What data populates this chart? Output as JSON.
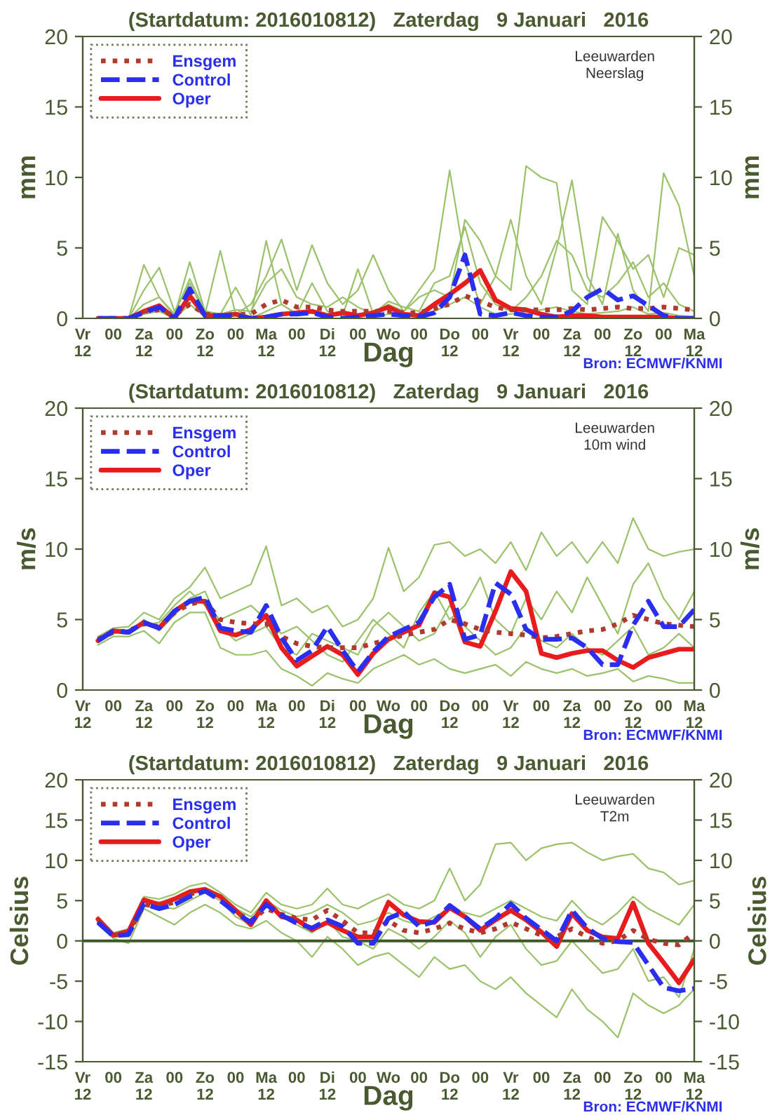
{
  "chart_data": [
    {
      "type": "line",
      "title": "(Startdatum: 2016010812)   Zaterdag   9 Januari   2016",
      "xlabel": "Dag",
      "ylabel": "mm",
      "y2label": "mm",
      "annotations": [
        "Leeuwarden\nNeerslag",
        "Bron: ECMWF/KNMI"
      ],
      "categories": [
        "Vr\n12",
        null,
        "00",
        null,
        "Za\n12",
        null,
        "00",
        null,
        "Zo\n12",
        null,
        "00",
        null,
        "Ma\n12",
        null,
        "00",
        null,
        "Di\n12",
        null,
        "00",
        null,
        "Wo",
        null,
        "00",
        null,
        "Do\n12",
        null,
        "00",
        null,
        "Vr\n12",
        null,
        "00",
        null,
        "Za\n12",
        null,
        "00",
        null,
        "Zo\n12",
        null,
        "00",
        null,
        "Ma\n12"
      ],
      "ylim": [
        0,
        20
      ],
      "yticks": [
        0,
        5,
        10,
        15,
        20
      ],
      "y2lim": [
        0,
        20
      ],
      "y2ticks": [
        0,
        5,
        10,
        15,
        20
      ],
      "legend": "top left",
      "series": [
        {
          "color": "#9bc26b",
          "values": [
            null,
            0,
            0,
            0,
            3.8,
            1.5,
            0.2,
            4.0,
            0.5,
            0.3,
            2.2,
            0.2,
            5.5,
            1.0,
            0.3,
            2.5,
            0.5,
            0.2,
            3.5,
            0.3,
            1.0,
            0.5,
            2.0,
            3.5,
            10.5,
            4.0,
            1.0,
            3.0,
            7.0,
            3.0,
            1.0,
            5.0,
            9.8,
            3.0,
            1.0,
            6.0,
            2.0,
            0.5,
            10.3,
            8.0,
            3.0
          ]
        },
        {
          "color": "#9bc26b",
          "values": [
            null,
            0,
            0,
            0,
            2.0,
            3.6,
            0.5,
            2.5,
            0.3,
            4.8,
            0.3,
            1.0,
            3.0,
            5.6,
            2.0,
            5.2,
            2.5,
            1.0,
            2.0,
            4.5,
            2.0,
            0.5,
            1.5,
            2.0,
            1.5,
            7.0,
            5.5,
            3.0,
            2.0,
            10.8,
            10.0,
            9.6,
            2.0,
            1.0,
            7.2,
            5.5,
            3.5,
            4.5,
            1.5,
            5.0,
            4.5
          ]
        },
        {
          "color": "#9bc26b",
          "values": [
            null,
            0,
            0,
            0,
            1.0,
            1.5,
            0.3,
            2.8,
            0.5,
            0.3,
            0.6,
            0.5,
            2.5,
            3.5,
            1.5,
            1.0,
            0.8,
            1.5,
            0.8,
            0.3,
            1.2,
            0.8,
            0.5,
            2.5,
            3.0,
            6.5,
            2.5,
            1.0,
            0.5,
            1.5,
            3.0,
            5.5,
            4.5,
            2.0,
            1.5,
            2.5,
            4.0,
            1.5,
            2.5,
            1.0,
            0.5
          ]
        },
        {
          "color": "#9bc26b",
          "values": [
            null,
            0,
            0,
            0,
            0.3,
            0.5,
            0,
            1.0,
            0.1,
            0.1,
            0.2,
            0,
            0.5,
            1.0,
            0.3,
            0.4,
            0.2,
            0.2,
            0.3,
            0.1,
            0.3,
            0.2,
            0.2,
            0.5,
            1.0,
            1.5,
            0.8,
            0.3,
            0.3,
            0.5,
            0.6,
            0.8,
            0.5,
            0.3,
            0.4,
            0.5,
            0.8,
            0.3,
            0.4,
            0.2,
            0.1
          ]
        },
        {
          "name": "Ensgem",
          "color": "#b03a2e",
          "line_style": "dotted",
          "values": [
            null,
            0,
            0,
            0,
            0.5,
            0.6,
            0.2,
            1.0,
            0.3,
            0.2,
            0.3,
            0.3,
            1.0,
            1.3,
            0.8,
            0.8,
            0.6,
            0.5,
            0.5,
            0.5,
            0.5,
            0.4,
            0.4,
            0.7,
            1.0,
            1.6,
            1.2,
            0.8,
            0.6,
            0.6,
            0.6,
            0.6,
            0.7,
            0.6,
            0.7,
            0.8,
            0.7,
            0.7,
            0.8,
            0.7,
            0.6
          ]
        },
        {
          "name": "Control",
          "color": "#2a2ef0",
          "line_style": "dashed",
          "values": [
            null,
            0,
            0,
            0,
            0.4,
            0.8,
            0,
            2.1,
            0.2,
            0.2,
            0.2,
            0,
            0.1,
            0.3,
            0.3,
            0.4,
            0.1,
            0,
            0.1,
            0.2,
            0.3,
            0.2,
            0.1,
            0.4,
            1.5,
            4.5,
            0.3,
            0.2,
            0.4,
            0.2,
            0.1,
            0.1,
            0.5,
            1.5,
            2.1,
            1.3,
            1.6,
            0.9,
            0.2,
            0,
            0
          ]
        },
        {
          "name": "Oper",
          "color": "#e81c1c",
          "line_style": "solid",
          "values": [
            null,
            0,
            0,
            0,
            0.5,
            0.9,
            0,
            1.6,
            0.2,
            0.2,
            0.3,
            0,
            0.1,
            0.3,
            0.4,
            0.5,
            0.2,
            0.4,
            0.2,
            0.4,
            0.8,
            0.3,
            0.2,
            1.0,
            1.7,
            2.5,
            3.4,
            1.3,
            0.7,
            0.6,
            0.3,
            0.1,
            0.2,
            0.2,
            0.1,
            0.1,
            0.1,
            0.1,
            0.1,
            0,
            0
          ]
        }
      ]
    },
    {
      "type": "line",
      "title": "(Startdatum: 2016010812)   Zaterdag   9 Januari   2016",
      "xlabel": "Dag",
      "ylabel": "m/s",
      "y2label": "m/s",
      "annotations": [
        "Leeuwarden\n10m wind",
        "Bron: ECMWF/KNMI"
      ],
      "categories": [
        "Vr\n12",
        null,
        "00",
        null,
        "Za\n12",
        null,
        "00",
        null,
        "Zo\n12",
        null,
        "00",
        null,
        "Ma\n12",
        null,
        "00",
        null,
        "Di\n12",
        null,
        "00",
        null,
        "Wo",
        null,
        "00",
        null,
        "Do\n12",
        null,
        "00",
        null,
        "Vr\n12",
        null,
        "00",
        null,
        "Za\n12",
        null,
        "00",
        null,
        "Zo\n12",
        null,
        "00",
        null,
        "Ma\n12"
      ],
      "ylim": [
        0,
        20
      ],
      "yticks": [
        0,
        5,
        10,
        15,
        20
      ],
      "y2lim": [
        0,
        20
      ],
      "y2ticks": [
        0,
        5,
        10,
        15,
        20
      ],
      "legend": "top left",
      "series": [
        {
          "color": "#9bc26b",
          "values": [
            null,
            3.8,
            4.4,
            4.5,
            5.5,
            5.0,
            6.5,
            7.3,
            8.7,
            6.5,
            7.0,
            7.5,
            10.2,
            6.0,
            6.5,
            5.5,
            6.0,
            4.5,
            5.0,
            6.5,
            10.1,
            7.0,
            8.0,
            10.3,
            10.5,
            9.5,
            10.0,
            9.0,
            10.5,
            8.5,
            11.2,
            9.5,
            10.5,
            9.0,
            10.5,
            9.0,
            12.2,
            10.0,
            9.5,
            9.8,
            10.0
          ]
        },
        {
          "color": "#9bc26b",
          "values": [
            null,
            3.2,
            3.8,
            3.8,
            4.2,
            3.3,
            4.8,
            5.5,
            5.5,
            3.0,
            2.5,
            2.5,
            2.8,
            1.5,
            1.0,
            0.3,
            1.2,
            0.8,
            0.5,
            1.5,
            2.0,
            2.5,
            1.8,
            2.2,
            1.5,
            1.2,
            1.5,
            1.8,
            1.0,
            2.0,
            1.5,
            1.2,
            1.5,
            1.0,
            1.2,
            1.5,
            0.6,
            1.0,
            0.8,
            0.5,
            0.5
          ]
        },
        {
          "color": "#9bc26b",
          "values": [
            null,
            3.5,
            4.0,
            4.3,
            4.6,
            4.8,
            6.0,
            7.0,
            6.0,
            5.0,
            5.5,
            6.0,
            5.0,
            4.0,
            4.5,
            3.5,
            2.5,
            2.0,
            3.5,
            5.0,
            4.0,
            3.0,
            5.5,
            7.0,
            5.0,
            6.0,
            8.0,
            5.0,
            4.0,
            6.5,
            5.0,
            7.0,
            5.5,
            8.0,
            6.0,
            4.0,
            7.5,
            9.0,
            6.5,
            5.0,
            7.0
          ]
        },
        {
          "color": "#9bc26b",
          "values": [
            null,
            3.7,
            4.3,
            4.0,
            5.0,
            4.2,
            5.3,
            6.5,
            7.0,
            4.5,
            3.5,
            4.0,
            4.5,
            3.0,
            2.5,
            4.0,
            3.5,
            3.0,
            2.5,
            4.5,
            5.5,
            4.5,
            3.5,
            4.0,
            6.0,
            4.5,
            3.5,
            2.5,
            3.0,
            4.5,
            3.5,
            3.0,
            4.0,
            3.0,
            2.5,
            3.5,
            4.5,
            2.5,
            3.0,
            4.0,
            3.0
          ]
        },
        {
          "name": "Ensgem",
          "color": "#b03a2e",
          "line_style": "dotted",
          "values": [
            null,
            3.6,
            4.1,
            4.2,
            4.7,
            4.5,
            5.5,
            6.1,
            6.3,
            5.0,
            4.8,
            4.7,
            4.7,
            3.8,
            3.3,
            3.1,
            3.0,
            3.0,
            3.0,
            3.3,
            3.6,
            3.9,
            4.1,
            4.3,
            5.0,
            4.7,
            4.3,
            4.1,
            4.0,
            3.9,
            3.7,
            3.8,
            4.0,
            4.2,
            4.3,
            4.7,
            5.3,
            5.0,
            4.7,
            4.6,
            4.5
          ]
        },
        {
          "name": "Control",
          "color": "#2a2ef0",
          "line_style": "dashed",
          "values": [
            null,
            3.5,
            4.2,
            4.1,
            4.8,
            4.4,
            5.6,
            6.3,
            6.6,
            4.4,
            4.2,
            4.1,
            6.0,
            3.7,
            2.1,
            2.8,
            4.5,
            2.8,
            1.3,
            2.7,
            3.8,
            4.3,
            4.8,
            6.6,
            7.5,
            3.6,
            3.9,
            7.6,
            6.8,
            4.3,
            3.6,
            3.6,
            3.7,
            3.0,
            1.8,
            1.8,
            4.6,
            6.3,
            4.5,
            4.5,
            5.7
          ]
        },
        {
          "name": "Oper",
          "color": "#e81c1c",
          "line_style": "solid",
          "values": [
            null,
            3.5,
            4.2,
            4.1,
            4.8,
            4.4,
            5.6,
            6.3,
            6.3,
            4.2,
            3.9,
            4.3,
            5.3,
            3.0,
            1.7,
            2.4,
            3.1,
            2.5,
            1.1,
            2.6,
            3.6,
            4.1,
            4.6,
            6.9,
            6.6,
            3.4,
            3.1,
            5.6,
            8.4,
            7.0,
            2.6,
            2.3,
            2.6,
            2.8,
            2.8,
            2.1,
            1.6,
            2.3,
            2.6,
            2.9,
            2.9
          ]
        }
      ]
    },
    {
      "type": "line",
      "title": "(Startdatum: 2016010812)   Zaterdag   9 Januari   2016",
      "xlabel": "Dag",
      "ylabel": "Celsius",
      "y2label": "Celsius",
      "annotations": [
        "Leeuwarden\nT2m",
        "Bron: ECMWF/KNMI"
      ],
      "categories": [
        "Vr\n12",
        null,
        "00",
        null,
        "Za\n12",
        null,
        "00",
        null,
        "Zo\n12",
        null,
        "00",
        null,
        "Ma\n12",
        null,
        "00",
        null,
        "Di\n12",
        null,
        "00",
        null,
        "Wo",
        null,
        "00",
        null,
        "Do\n12",
        null,
        "00",
        null,
        "Vr\n12",
        null,
        "00",
        null,
        "Za\n12",
        null,
        "00",
        null,
        "Zo\n12",
        null,
        "00",
        null,
        "Ma\n12"
      ],
      "ylim": [
        -15,
        20
      ],
      "yticks": [
        -15,
        -10,
        -5,
        0,
        5,
        10,
        15,
        20
      ],
      "y2lim": [
        -15,
        20
      ],
      "y2ticks": [
        -15,
        -10,
        -5,
        0,
        5,
        10,
        15,
        20
      ],
      "legend": "top left",
      "ref_lines": [
        {
          "axis": "y",
          "value": 0,
          "color": "#3c5a28"
        }
      ],
      "series": [
        {
          "color": "#9bc26b",
          "values": [
            null,
            3.0,
            1.0,
            1.5,
            5.5,
            5.2,
            5.8,
            6.8,
            7.2,
            6.0,
            4.5,
            3.5,
            6.0,
            4.5,
            4.0,
            4.5,
            6.5,
            4.5,
            4.0,
            5.0,
            5.8,
            4.5,
            4.0,
            5.0,
            9.0,
            5.0,
            7.0,
            12.0,
            12.2,
            10.0,
            11.5,
            12.0,
            12.2,
            11.0,
            10.0,
            10.5,
            10.8,
            9.0,
            8.5,
            7.0,
            7.5
          ]
        },
        {
          "color": "#9bc26b",
          "values": [
            null,
            2.0,
            0.3,
            -0.3,
            4.0,
            3.0,
            2.0,
            3.5,
            4.5,
            3.5,
            2.0,
            1.5,
            2.5,
            1.0,
            0.0,
            -2.0,
            0.5,
            -1.0,
            -3.0,
            -2.0,
            -1.5,
            -3.0,
            -4.5,
            -2.0,
            -3.5,
            -3.0,
            -5.0,
            -6.0,
            -4.5,
            -6.5,
            -8.0,
            -9.5,
            -6.0,
            -8.5,
            -10.0,
            -12.0,
            -6.5,
            -8.0,
            -9.0,
            -8.0,
            -6.0
          ]
        },
        {
          "color": "#9bc26b",
          "values": [
            null,
            2.4,
            0.5,
            0.5,
            4.8,
            4.2,
            4.0,
            5.0,
            6.0,
            5.0,
            3.0,
            2.0,
            4.5,
            3.0,
            2.0,
            1.0,
            2.5,
            0.5,
            0.0,
            -1.0,
            1.5,
            0.5,
            -1.0,
            0.5,
            2.5,
            1.0,
            -2.0,
            0.5,
            2.0,
            -1.0,
            -3.0,
            -2.5,
            0.0,
            -2.0,
            -4.0,
            -3.5,
            -1.0,
            -5.0,
            -4.5,
            -7.0,
            -1.0
          ]
        },
        {
          "color": "#9bc26b",
          "values": [
            null,
            2.6,
            0.8,
            1.0,
            5.0,
            4.8,
            5.2,
            6.3,
            6.6,
            5.5,
            4.0,
            3.0,
            5.0,
            3.8,
            3.0,
            3.5,
            4.5,
            3.5,
            2.0,
            2.5,
            3.5,
            2.5,
            2.0,
            3.0,
            4.0,
            3.5,
            3.0,
            4.0,
            5.0,
            4.0,
            3.0,
            2.5,
            5.0,
            3.0,
            2.0,
            3.5,
            5.5,
            4.0,
            3.0,
            2.0,
            4.5
          ]
        },
        {
          "name": "Ensgem",
          "color": "#b03a2e",
          "line_style": "dotted",
          "values": [
            null,
            2.5,
            0.7,
            1.0,
            4.5,
            4.3,
            4.8,
            5.8,
            6.2,
            5.3,
            3.6,
            2.5,
            4.0,
            3.3,
            2.8,
            2.6,
            3.8,
            2.5,
            1.0,
            1.0,
            2.5,
            1.3,
            1.0,
            1.5,
            2.2,
            1.5,
            1.0,
            1.5,
            2.3,
            1.5,
            0.7,
            0.5,
            1.5,
            0.5,
            -0.3,
            0,
            1.3,
            0.2,
            -0.3,
            -0.5,
            1.0
          ]
        },
        {
          "name": "Control",
          "color": "#2a2ef0",
          "line_style": "dashed",
          "values": [
            null,
            2.3,
            0.6,
            0.8,
            4.6,
            4.0,
            4.5,
            5.5,
            6.2,
            5.0,
            3.5,
            2.3,
            4.5,
            3.2,
            2.2,
            1.6,
            2.6,
            1.8,
            -0.3,
            -0.3,
            2.8,
            3.6,
            1.8,
            2.4,
            4.4,
            3.0,
            1.5,
            2.8,
            4.6,
            2.8,
            1.4,
            0.0,
            3.8,
            1.6,
            0.3,
            -0.1,
            -0.2,
            -3.0,
            -5.8,
            -6.2,
            -5.9
          ]
        },
        {
          "name": "Oper",
          "color": "#e81c1c",
          "line_style": "solid",
          "values": [
            null,
            2.7,
            0.7,
            1.2,
            5.1,
            4.5,
            5.2,
            6.1,
            6.4,
            5.5,
            3.8,
            2.0,
            5.0,
            3.0,
            2.6,
            1.4,
            2.3,
            1.3,
            0.5,
            0.5,
            4.8,
            3.2,
            2.4,
            2.3,
            4.1,
            3.0,
            1.3,
            2.6,
            3.8,
            2.6,
            1.1,
            -0.7,
            3.4,
            1.3,
            0.5,
            0.3,
            4.7,
            -0.3,
            -2.7,
            -5.2,
            -2.3
          ]
        }
      ]
    }
  ]
}
